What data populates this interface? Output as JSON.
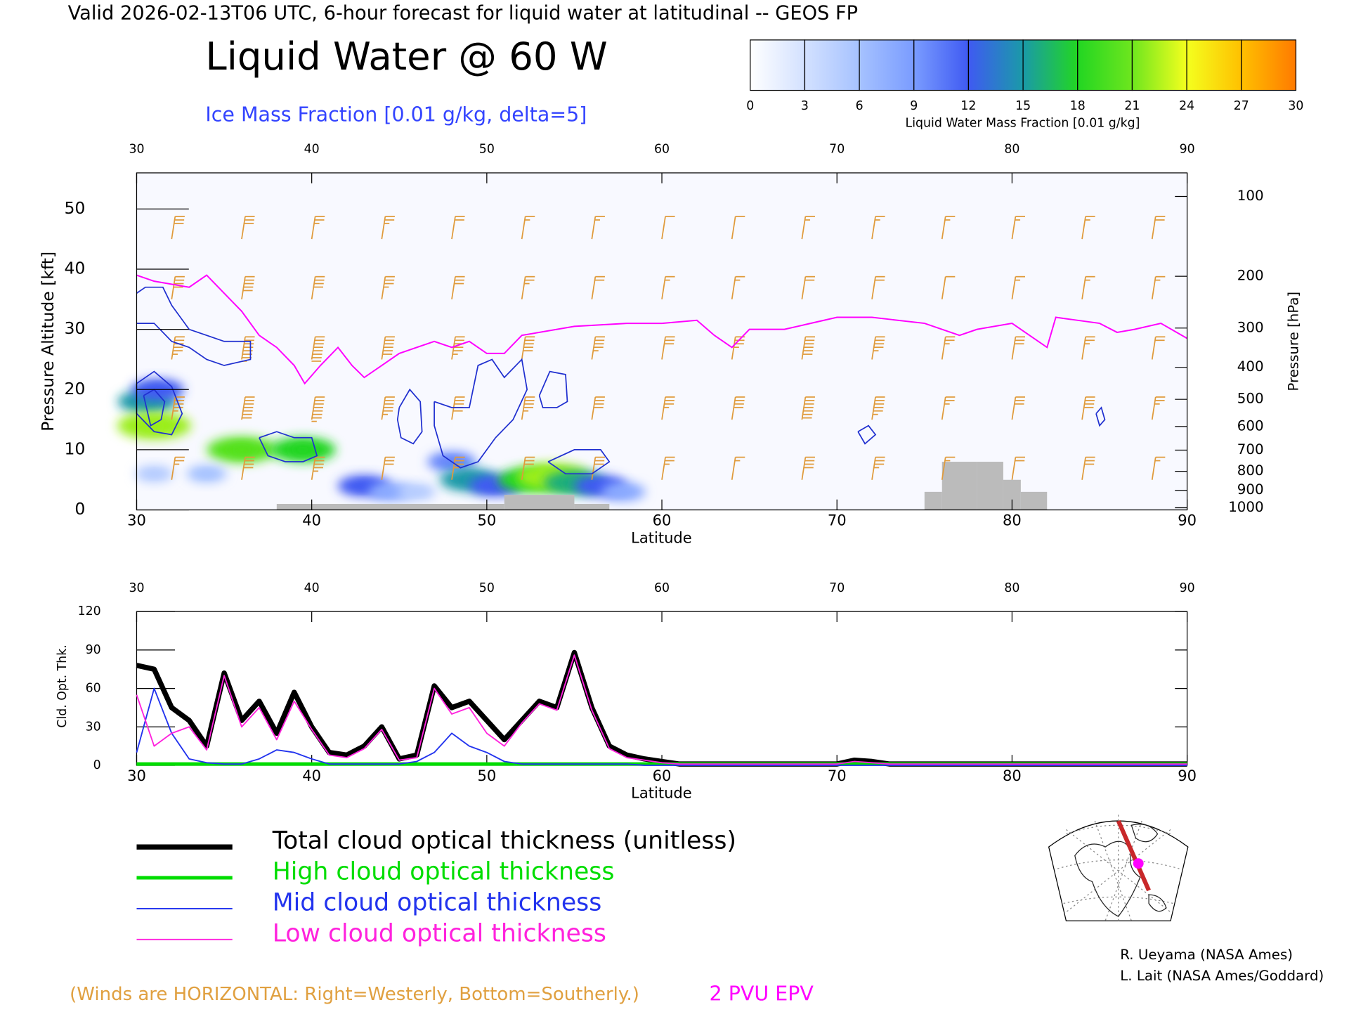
{
  "header": "Valid 2026-02-13T06 UTC, 6-hour forecast for liquid water at latitudinal -- GEOS FP",
  "credits": [
    "R. Ueyama (NASA Ames)",
    "L. Lait (NASA Ames/Goddard)"
  ],
  "chart_data": [
    {
      "type": "cross-section",
      "title": "Liquid Water @ 60 W",
      "subtitle": "Ice Mass Fraction [0.01 g/kg, delta=5]",
      "xlabel": "Latitude",
      "ylabel": "Pressure Altitude [kft]",
      "y2label": "Pressure [hPa]",
      "xlim": [
        30,
        90
      ],
      "xticks": [
        30,
        40,
        50,
        60,
        70,
        80,
        90
      ],
      "ylim": [
        0,
        56
      ],
      "yticks": [
        0,
        10,
        20,
        30,
        40,
        50
      ],
      "y2lim": [
        1013,
        80
      ],
      "y2ticks": [
        100,
        200,
        300,
        400,
        500,
        600,
        700,
        800,
        900,
        1000
      ],
      "colorbar": {
        "label": "Liquid Water Mass Fraction [0.01 g/kg]",
        "ticks": [
          0,
          3,
          6,
          9,
          12,
          15,
          18,
          21,
          24,
          27,
          30
        ],
        "colors": [
          "#ffffff",
          "#d3e1ff",
          "#a6c2ff",
          "#7a9cff",
          "#3f5af2",
          "#1a9aa8",
          "#22d622",
          "#6ee61e",
          "#f4ff1e",
          "#ffc000",
          "#ff7a00",
          "#ff2200"
        ]
      },
      "liquid_water": {
        "x": [
          30.6,
          31,
          31.2,
          36,
          39.5,
          43,
          44.5,
          48,
          49,
          50.5,
          52.5,
          53.8,
          55,
          56.5,
          57.8,
          34,
          31,
          46
        ],
        "y": [
          18,
          14,
          20,
          10,
          10,
          4,
          3,
          8,
          5,
          4,
          5,
          5.5,
          4.5,
          4,
          3,
          6,
          6,
          3
        ],
        "values": [
          15,
          22,
          12,
          20,
          18,
          12,
          8,
          10,
          15,
          12,
          18,
          22,
          16,
          12,
          8,
          6,
          5,
          5
        ]
      },
      "ice_contours": {
        "color": "#2030d0",
        "lines": [
          {
            "x": [
              30,
              30.5,
              31.5,
              32,
              33,
              34,
              35,
              36.5,
              36.5,
              35,
              34,
              33,
              32,
              31,
              30
            ],
            "values": [
              36,
              37,
              37,
              34,
              30,
              29,
              28,
              28,
              25,
              24,
              25,
              27,
              28,
              31,
              31
            ]
          },
          {
            "x": [
              30,
              31,
              32,
              32.6,
              32,
              31,
              30,
              30
            ],
            "values": [
              21,
              23,
              20.5,
              16,
              12.5,
              13,
              16,
              21
            ]
          },
          {
            "x": [
              30.4,
              31,
              31.6,
              31.4,
              30.8,
              30.4
            ],
            "values": [
              19,
              20,
              18,
              15,
              14,
              19
            ]
          },
          {
            "x": [
              37,
              38,
              39,
              40,
              40.3,
              39.5,
              38.5,
              37.5,
              37
            ],
            "values": [
              12,
              13,
              12,
              12,
              9,
              8,
              8,
              9,
              12
            ]
          },
          {
            "x": [
              45,
              45.6,
              46.2,
              46.3,
              45.8,
              45.1,
              44.9,
              45
            ],
            "values": [
              17,
              20,
              18,
              13,
              11,
              12,
              15,
              17
            ]
          },
          {
            "x": [
              47,
              48,
              49,
              49.5,
              50.3,
              51,
              52,
              52.3,
              51.5,
              50.5,
              49.5,
              48.5,
              47.5,
              47,
              47
            ],
            "values": [
              18,
              17,
              17,
              24,
              25,
              22,
              25,
              20,
              15,
              12,
              8,
              7,
              9,
              14,
              18
            ]
          },
          {
            "x": [
              53,
              53.6,
              54.5,
              54.6,
              54,
              53.2,
              53
            ],
            "values": [
              19,
              23,
              22.5,
              18,
              17,
              17,
              19
            ]
          },
          {
            "x": [
              53.5,
              55,
              56.5,
              57,
              56,
              54.5,
              53.5
            ],
            "values": [
              8,
              10,
              10,
              8,
              6,
              6,
              8
            ]
          },
          {
            "x": [
              71.2,
              71.8,
              72.2,
              71.6,
              71.2
            ],
            "values": [
              13,
              14,
              12.5,
              11,
              13
            ]
          },
          {
            "x": [
              84.8,
              85.1,
              85.3,
              85,
              84.8
            ],
            "values": [
              16,
              17,
              15,
              14,
              16
            ]
          }
        ]
      },
      "tropopause": {
        "name": "2 PVU EPV",
        "color": "#ff00ff",
        "x": [
          30,
          31,
          33,
          34,
          35,
          36,
          37,
          38,
          39,
          39.6,
          40.5,
          41.5,
          42.3,
          43,
          44,
          45,
          46,
          47,
          48,
          49,
          50,
          51,
          52,
          55,
          58,
          60,
          62,
          63,
          64,
          65,
          67,
          70,
          72,
          75,
          77,
          78,
          80,
          81,
          82,
          82.5,
          85,
          86,
          87,
          88.5,
          90
        ],
        "values": [
          39,
          38,
          37,
          39,
          36,
          33,
          29,
          27,
          24,
          21,
          24,
          27,
          24,
          22,
          24,
          26,
          27,
          28,
          27,
          28,
          26,
          26,
          29,
          30.5,
          31,
          31,
          31.5,
          29,
          27,
          30,
          30,
          32,
          32,
          31,
          29,
          30,
          31,
          29,
          27,
          32,
          31,
          29.5,
          30,
          31,
          28.5
        ]
      },
      "terrain": {
        "color": "#bbbbbb",
        "bins": [
          38,
          50,
          51,
          55,
          57,
          75,
          76,
          78,
          79.5,
          80.5,
          82
        ],
        "values": [
          1,
          1,
          2.5,
          1,
          0,
          3,
          8,
          8,
          5,
          3
        ]
      },
      "winds": {
        "note": "(Winds are HORIZONTAL: Right=Westerly, Bottom=Southerly.)",
        "color": "#e09a3a",
        "x": [
          32,
          36,
          40,
          44,
          48,
          52,
          56,
          60,
          64,
          68,
          72,
          76,
          80,
          84,
          88
        ],
        "levels": [
          5,
          15,
          25,
          35,
          45
        ],
        "speeds": [
          [
            25,
            40,
            45,
            30,
            35,
            30,
            30,
            25,
            15,
            40,
            35,
            15,
            20,
            30,
            15
          ],
          [
            45,
            70,
            75,
            55,
            50,
            45,
            40,
            35,
            40,
            70,
            55,
            25,
            30,
            40,
            25
          ],
          [
            55,
            75,
            80,
            60,
            55,
            50,
            45,
            30,
            35,
            60,
            45,
            25,
            30,
            25,
            20
          ],
          [
            40,
            50,
            40,
            35,
            30,
            25,
            20,
            15,
            15,
            20,
            20,
            10,
            15,
            15,
            15
          ],
          [
            30,
            30,
            25,
            25,
            20,
            15,
            15,
            10,
            10,
            15,
            15,
            15,
            15,
            15,
            20
          ]
        ]
      }
    },
    {
      "type": "line",
      "ylabel": "Cld. Opt. Thk.",
      "xlabel": "Latitude",
      "xlim": [
        30,
        90
      ],
      "xticks": [
        30,
        40,
        50,
        60,
        70,
        80,
        90
      ],
      "ylim": [
        0,
        120
      ],
      "yticks": [
        0,
        30,
        60,
        90,
        120
      ],
      "x": [
        30,
        31,
        32,
        33,
        34,
        35,
        36,
        37,
        38,
        39,
        40,
        41,
        42,
        43,
        44,
        45,
        46,
        47,
        48,
        49,
        50,
        51,
        52,
        53,
        54,
        55,
        56,
        57,
        58,
        59,
        60,
        61,
        62,
        63,
        64,
        65,
        66,
        67,
        68,
        69,
        70,
        71,
        72,
        73,
        74,
        75,
        76,
        77,
        78,
        79,
        80,
        81,
        82,
        83,
        84,
        85,
        86,
        87,
        88,
        89,
        90
      ],
      "series": [
        {
          "name": "Total cloud optical thickness (unitless)",
          "color": "#000000",
          "line_width": 6,
          "values": [
            78,
            75,
            45,
            35,
            15,
            72,
            35,
            50,
            25,
            57,
            30,
            10,
            8,
            15,
            30,
            5,
            8,
            62,
            45,
            50,
            35,
            20,
            35,
            50,
            45,
            88,
            45,
            15,
            8,
            5,
            3,
            1,
            1,
            1,
            1,
            1,
            1,
            1,
            1,
            1,
            1,
            4,
            3,
            1,
            1,
            1,
            1,
            1,
            1,
            1,
            1,
            1,
            1,
            1,
            1,
            1,
            1,
            1,
            1,
            1,
            1
          ]
        },
        {
          "name": "High cloud optical thickness",
          "color": "#00dd00",
          "line_width": 4,
          "values": [
            1,
            1,
            1,
            1,
            1,
            1,
            1,
            1,
            1,
            1,
            1,
            1,
            1,
            1,
            1,
            1,
            1,
            1,
            1,
            1,
            1,
            1,
            1,
            1,
            1,
            1,
            1,
            1,
            1,
            1,
            1,
            1,
            1,
            1,
            1,
            1,
            1,
            1,
            1,
            1,
            1,
            1,
            1,
            1,
            1,
            1,
            1,
            1,
            1,
            1,
            1,
            1,
            1,
            1,
            1,
            1,
            1,
            1,
            1,
            1,
            1
          ]
        },
        {
          "name": "Mid cloud optical thickness",
          "color": "#2233ee",
          "line_width": 1.5,
          "values": [
            10,
            60,
            25,
            5,
            2,
            1,
            1,
            5,
            12,
            10,
            5,
            1,
            1,
            1,
            1,
            1,
            3,
            10,
            25,
            15,
            10,
            3,
            1,
            1,
            1,
            1,
            1,
            1,
            1,
            0,
            0,
            0,
            0,
            0,
            0,
            0,
            0,
            0,
            0,
            0,
            0,
            0,
            0,
            0,
            0,
            0,
            0,
            0,
            0,
            0,
            0,
            0,
            0,
            0,
            0,
            0,
            0,
            0,
            0,
            0,
            0
          ]
        },
        {
          "name": "Low cloud optical thickness",
          "color": "#ff22dd",
          "line_width": 1.5,
          "values": [
            55,
            15,
            25,
            30,
            12,
            70,
            30,
            45,
            20,
            50,
            28,
            8,
            6,
            13,
            28,
            4,
            6,
            60,
            40,
            45,
            25,
            15,
            33,
            48,
            43,
            86,
            43,
            13,
            6,
            4,
            2,
            1,
            1,
            1,
            1,
            1,
            1,
            1,
            1,
            1,
            1,
            3,
            2,
            1,
            1,
            1,
            1,
            1,
            1,
            1,
            1,
            1,
            1,
            1,
            1,
            1,
            1,
            1,
            1,
            1,
            1
          ]
        }
      ]
    }
  ]
}
